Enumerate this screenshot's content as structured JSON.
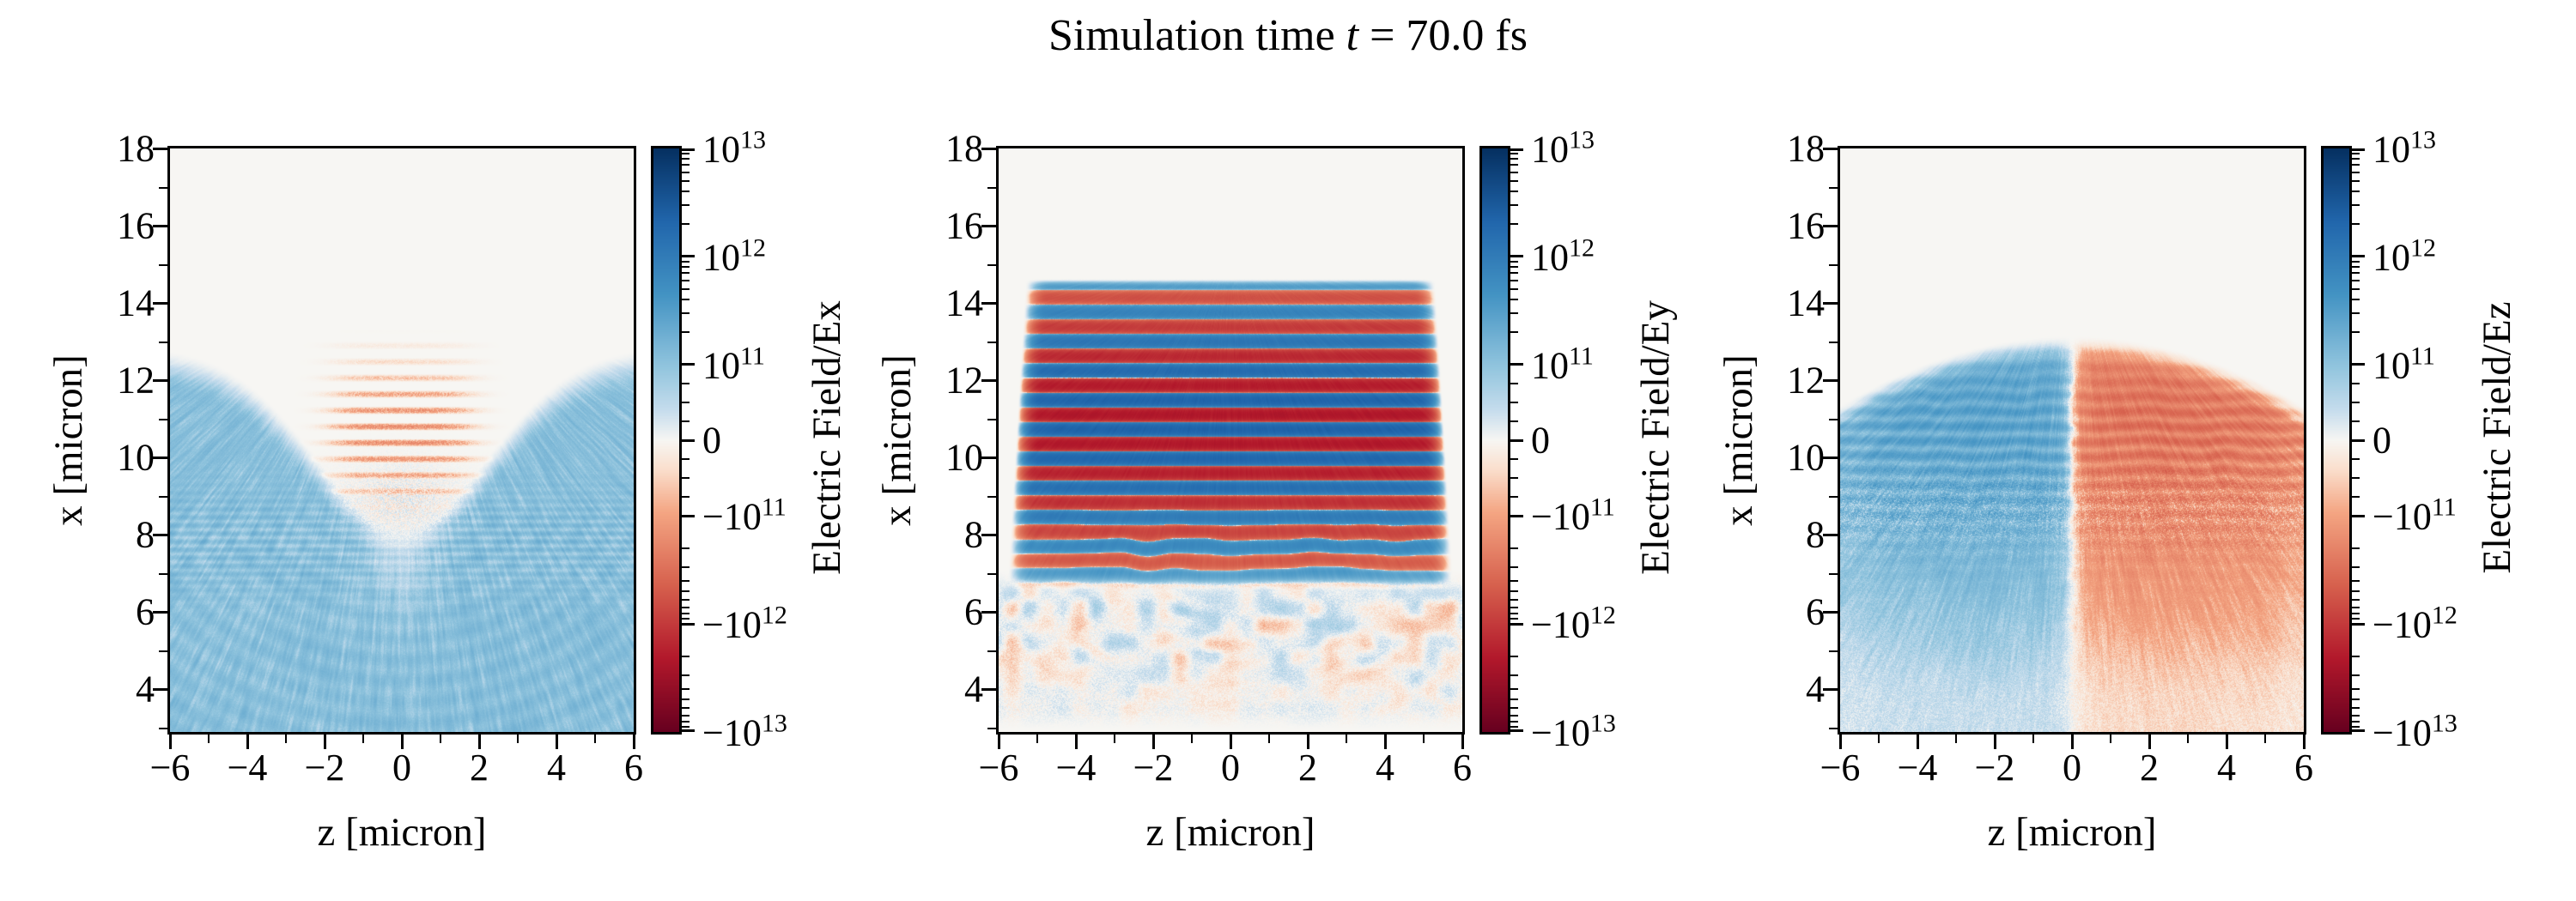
{
  "title": {
    "prefix": "Simulation time ",
    "math": "t",
    "suffix": " = 70.0 fs"
  },
  "colors": {
    "background": "#ffffff",
    "axes_background": "#f2f1ee",
    "spine": "#000000",
    "text": "#000000",
    "colormap_name": "RdBu",
    "colormap_stops": [
      {
        "t": 0.0,
        "rgb": [
          5,
          48,
          97
        ]
      },
      {
        "t": 0.125,
        "rgb": [
          33,
          102,
          172
        ]
      },
      {
        "t": 0.25,
        "rgb": [
          67,
          147,
          195
        ]
      },
      {
        "t": 0.375,
        "rgb": [
          146,
          197,
          222
        ]
      },
      {
        "t": 0.45,
        "rgb": [
          199,
          221,
          237
        ]
      },
      {
        "t": 0.5,
        "rgb": [
          247,
          246,
          243
        ]
      },
      {
        "t": 0.55,
        "rgb": [
          250,
          223,
          205
        ]
      },
      {
        "t": 0.625,
        "rgb": [
          244,
          165,
          130
        ]
      },
      {
        "t": 0.75,
        "rgb": [
          214,
          96,
          77
        ]
      },
      {
        "t": 0.875,
        "rgb": [
          178,
          24,
          43
        ]
      },
      {
        "t": 1.0,
        "rgb": [
          103,
          0,
          31
        ]
      }
    ]
  },
  "value_map": {
    "unit": 100000000000.0,
    "full_scale": 10000000000000.0,
    "decade_h": 0.37,
    "linthresh_h": 0.26
  },
  "chart_data": [
    {
      "type": "heatmap",
      "field": "Ex",
      "xlabel": "z [micron]",
      "ylabel": "x [micron]",
      "xlim": [
        -6,
        6
      ],
      "ylim": [
        2.9,
        18
      ],
      "xticks_major": [
        -6,
        -4,
        -2,
        0,
        2,
        4,
        6
      ],
      "xtick_labels": [
        "−6",
        "−4",
        "−2",
        "0",
        "2",
        "4",
        "6"
      ],
      "xticks_minor": [
        -5,
        -3,
        -1,
        1,
        3,
        5
      ],
      "yticks_major": [
        18,
        16,
        14,
        12,
        10,
        8,
        6,
        4
      ],
      "ytick_labels": [
        "18",
        "16",
        "14",
        "12",
        "10",
        "8",
        "6",
        "4"
      ],
      "yticks_minor": [
        17,
        15,
        13,
        11,
        9,
        7,
        5,
        3
      ],
      "colorbar": {
        "label": "Electric Field/Ex",
        "scale": "symlog",
        "vmin": -10000000000000.0,
        "vmax": 10000000000000.0,
        "ticks": [
          {
            "base": "10",
            "exp": "13",
            "frac": 0.0
          },
          {
            "base": "10",
            "exp": "12",
            "frac": 0.185
          },
          {
            "base": "10",
            "exp": "11",
            "frac": 0.37
          },
          {
            "base": "0",
            "exp": "",
            "frac": 0.5
          },
          {
            "base": "−10",
            "exp": "11",
            "frac": 0.63
          },
          {
            "base": "−10",
            "exp": "12",
            "frac": 0.815
          },
          {
            "base": "−10",
            "exp": "13",
            "frac": 1.0
          }
        ],
        "minor_log_decades": [
          [
            0.0,
            0.185
          ],
          [
            0.185,
            0.37
          ]
        ],
        "minor_linear": {
          "center": 0.5,
          "step": 0.0325,
          "count": 3
        }
      },
      "pattern": {
        "kind": "ex",
        "blue": {
          "amp": 1.15,
          "boundary_center_x": 8.3,
          "boundary_rise": 4.6,
          "boundary_zsigma": 3.2
        },
        "white_channel": {
          "z_sigma": 1.0,
          "x_center": 7.6,
          "x_sigma": 1.6,
          "depth": 0.55
        },
        "fine_ripple": {
          "period": 0.21,
          "x_center": 7.8,
          "x_sigma": 1.3,
          "amp": 0.28
        },
        "arcs": {
          "center_x": 10.4,
          "period": 0.55,
          "amp": 0.13
        },
        "stripes": {
          "amp": 1.5,
          "period": 0.42,
          "phase_x": 12.9,
          "x_center": 10.6,
          "x_sigma": 1.55,
          "x_window": [
            8.55,
            13.35
          ],
          "z_sigma": 1.8
        },
        "speckle": {
          "x_center": 8.9,
          "x_sigma": 0.9,
          "z_sigma": 1.5,
          "amp": 1.0
        }
      }
    },
    {
      "type": "heatmap",
      "field": "Ey",
      "xlabel": "z [micron]",
      "ylabel": "x [micron]",
      "xlim": [
        -6,
        6
      ],
      "ylim": [
        2.9,
        18
      ],
      "xticks_major": [
        -6,
        -4,
        -2,
        0,
        2,
        4,
        6
      ],
      "xtick_labels": [
        "−6",
        "−4",
        "−2",
        "0",
        "2",
        "4",
        "6"
      ],
      "xticks_minor": [
        -5,
        -3,
        -1,
        1,
        3,
        5
      ],
      "yticks_major": [
        18,
        16,
        14,
        12,
        10,
        8,
        6,
        4
      ],
      "ytick_labels": [
        "18",
        "16",
        "14",
        "12",
        "10",
        "8",
        "6",
        "4"
      ],
      "yticks_minor": [
        17,
        15,
        13,
        11,
        9,
        7,
        5,
        3
      ],
      "colorbar": {
        "label": "Electric Field/Ey",
        "scale": "symlog",
        "vmin": -10000000000000.0,
        "vmax": 10000000000000.0,
        "ticks": [
          {
            "base": "10",
            "exp": "13",
            "frac": 0.0
          },
          {
            "base": "10",
            "exp": "12",
            "frac": 0.185
          },
          {
            "base": "10",
            "exp": "11",
            "frac": 0.37
          },
          {
            "base": "0",
            "exp": "",
            "frac": 0.5
          },
          {
            "base": "−10",
            "exp": "11",
            "frac": 0.63
          },
          {
            "base": "−10",
            "exp": "12",
            "frac": 0.815
          },
          {
            "base": "−10",
            "exp": "13",
            "frac": 1.0
          }
        ],
        "minor_log_decades": [
          [
            0.0,
            0.185
          ],
          [
            0.185,
            0.37
          ]
        ],
        "minor_linear": {
          "center": 0.5,
          "step": 0.0325,
          "count": 3
        }
      },
      "pattern": {
        "kind": "ey",
        "top_edge": 14.62,
        "bottom_edge": 6.55,
        "period": 0.76,
        "amp_base": 2.5,
        "amp_core": 20,
        "core_center_x": 10.9,
        "core_sigma_x": 2.5,
        "z_halfwidth_at3": 6.0,
        "z_halfwidth_slope": 0.06,
        "phase_noise": {
          "amp": 1.1,
          "below_x": 9.0
        },
        "mottle": {
          "top": 7.1,
          "amp": 0.75,
          "arc_center_x": 9.0,
          "arc_period": 0.5
        }
      }
    },
    {
      "type": "heatmap",
      "field": "Ez",
      "xlabel": "z [micron]",
      "ylabel": "x [micron]",
      "xlim": [
        -6,
        6
      ],
      "ylim": [
        2.9,
        18
      ],
      "xticks_major": [
        -6,
        -4,
        -2,
        0,
        2,
        4,
        6
      ],
      "xtick_labels": [
        "−6",
        "−4",
        "−2",
        "0",
        "2",
        "4",
        "6"
      ],
      "xticks_minor": [
        -5,
        -3,
        -1,
        1,
        3,
        5
      ],
      "yticks_major": [
        18,
        16,
        14,
        12,
        10,
        8,
        6,
        4
      ],
      "ytick_labels": [
        "18",
        "16",
        "14",
        "12",
        "10",
        "8",
        "6",
        "4"
      ],
      "yticks_minor": [
        17,
        15,
        13,
        11,
        9,
        7,
        5,
        3
      ],
      "colorbar": {
        "label": "Electric Field/Ez",
        "scale": "symlog",
        "vmin": -10000000000000.0,
        "vmax": 10000000000000.0,
        "ticks": [
          {
            "base": "10",
            "exp": "13",
            "frac": 0.0
          },
          {
            "base": "10",
            "exp": "12",
            "frac": 0.185
          },
          {
            "base": "10",
            "exp": "11",
            "frac": 0.37
          },
          {
            "base": "0",
            "exp": "",
            "frac": 0.5
          },
          {
            "base": "−10",
            "exp": "11",
            "frac": 0.63
          },
          {
            "base": "−10",
            "exp": "12",
            "frac": 0.815
          },
          {
            "base": "−10",
            "exp": "13",
            "frac": 1.0
          }
        ],
        "minor_log_decades": [
          [
            0.0,
            0.185
          ],
          [
            0.185,
            0.37
          ]
        ],
        "minor_linear": {
          "center": 0.5,
          "step": 0.0325,
          "count": 3
        }
      },
      "pattern": {
        "kind": "ez",
        "slit_halfwidth": 0.3,
        "slit_jitter": 0.12,
        "boundary_top_x": 13.15,
        "boundary_curve": 0.05,
        "amp": 2.7,
        "prof_center_x": 10.9,
        "prof_sigma_x": 2.3,
        "depth_min": 0.3,
        "ripple": {
          "period": 0.385,
          "amp": 0.4,
          "x_center": 10.2,
          "x_sigma": 2.4
        },
        "speckle_band": {
          "x_center": 8.6,
          "x_sigma": 1.1,
          "amp": 1.4
        },
        "edge_fade": {
          "start": 4.9,
          "amount": 0.22
        }
      }
    }
  ]
}
